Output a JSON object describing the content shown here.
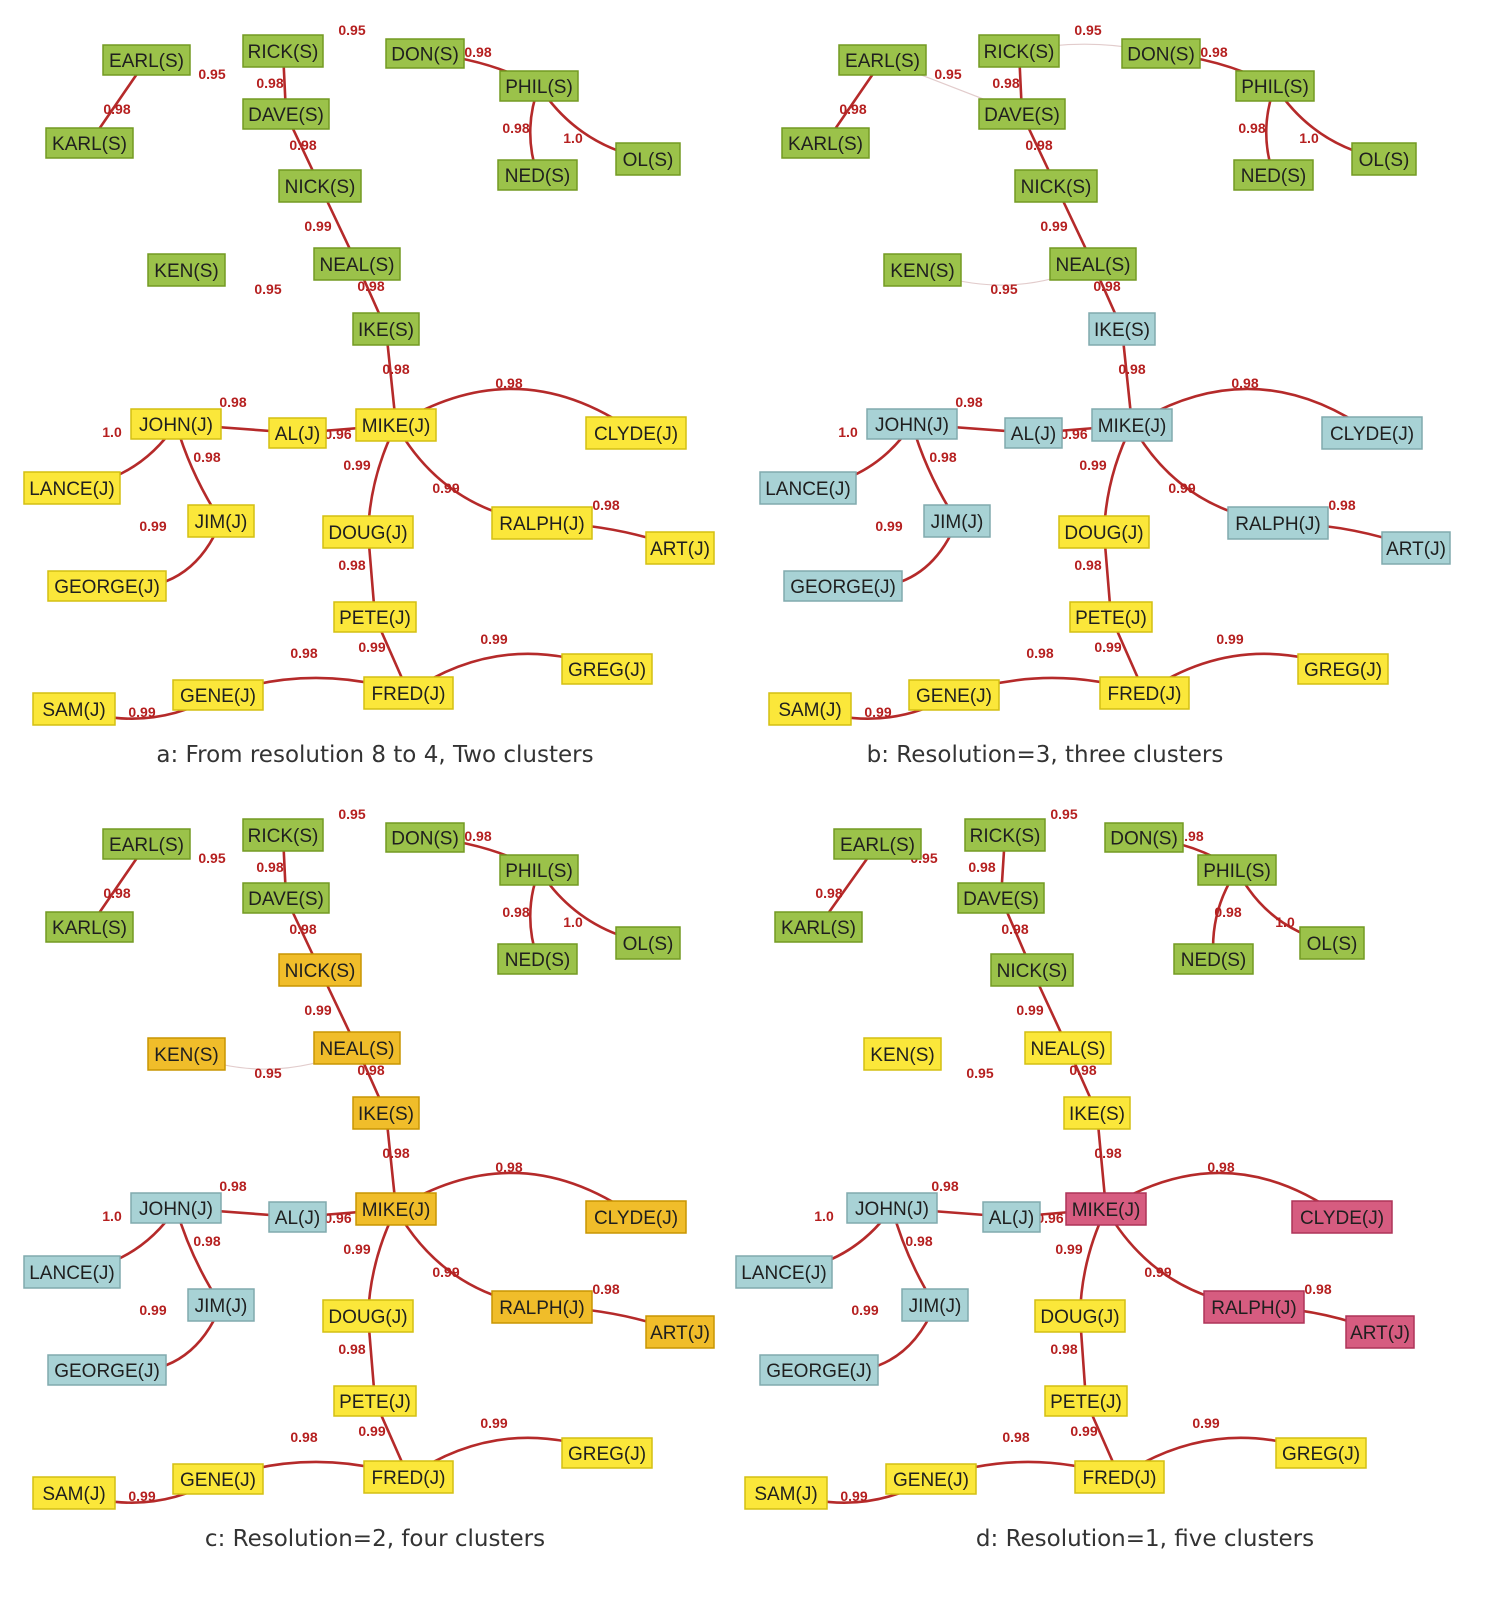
{
  "colors": {
    "green": "#9bc24a",
    "yellow": "#fbe73a",
    "blue": "#a8d2d5",
    "orange": "#f0bd2a",
    "pink": "#d65c80",
    "edge": "#b52a2a",
    "edge_label": "#b51f1f"
  },
  "nodes": [
    {
      "id": "EARL",
      "label": "EARL(S)"
    },
    {
      "id": "RICK",
      "label": "RICK(S)"
    },
    {
      "id": "DON",
      "label": "DON(S)"
    },
    {
      "id": "PHIL",
      "label": "PHIL(S)"
    },
    {
      "id": "KARL",
      "label": "KARL(S)"
    },
    {
      "id": "DAVE",
      "label": "DAVE(S)"
    },
    {
      "id": "NED",
      "label": "NED(S)"
    },
    {
      "id": "OL",
      "label": "OL(S)"
    },
    {
      "id": "NICK",
      "label": "NICK(S)"
    },
    {
      "id": "KEN",
      "label": "KEN(S)"
    },
    {
      "id": "NEAL",
      "label": "NEAL(S)"
    },
    {
      "id": "IKE",
      "label": "IKE(S)"
    },
    {
      "id": "JOHN",
      "label": "JOHN(J)"
    },
    {
      "id": "AL",
      "label": "AL(J)"
    },
    {
      "id": "MIKE",
      "label": "MIKE(J)"
    },
    {
      "id": "CLYDE",
      "label": "CLYDE(J)"
    },
    {
      "id": "LANCE",
      "label": "LANCE(J)"
    },
    {
      "id": "JIM",
      "label": "JIM(J)"
    },
    {
      "id": "DOUG",
      "label": "DOUG(J)"
    },
    {
      "id": "RALPH",
      "label": "RALPH(J)"
    },
    {
      "id": "ART",
      "label": "ART(J)"
    },
    {
      "id": "GEORGE",
      "label": "GEORGE(J)"
    },
    {
      "id": "PETE",
      "label": "PETE(J)"
    },
    {
      "id": "GREG",
      "label": "GREG(J)"
    },
    {
      "id": "SAM",
      "label": "SAM(J)"
    },
    {
      "id": "GENE",
      "label": "GENE(J)"
    },
    {
      "id": "FRED",
      "label": "FRED(J)"
    }
  ],
  "edges": [
    {
      "from": "EARL",
      "to": "KARL",
      "label": "0.98"
    },
    {
      "from": "EARL",
      "to": "DAVE",
      "label": "0.95"
    },
    {
      "from": "RICK",
      "to": "DAVE",
      "label": "0.98"
    },
    {
      "from": "RICK",
      "to": "DON",
      "label": "0.95"
    },
    {
      "from": "DON",
      "to": "PHIL",
      "label": "0.98"
    },
    {
      "from": "PHIL",
      "to": "NED",
      "label": "0.98"
    },
    {
      "from": "PHIL",
      "to": "OL",
      "label": "1.0"
    },
    {
      "from": "DAVE",
      "to": "NICK",
      "label": "0.98"
    },
    {
      "from": "NICK",
      "to": "NEAL",
      "label": "0.99"
    },
    {
      "from": "KEN",
      "to": "NEAL",
      "label": "0.95"
    },
    {
      "from": "NEAL",
      "to": "IKE",
      "label": "0.98"
    },
    {
      "from": "IKE",
      "to": "MIKE",
      "label": "0.98"
    },
    {
      "from": "MIKE",
      "to": "CLYDE",
      "label": "0.98"
    },
    {
      "from": "JOHN",
      "to": "AL",
      "label": "0.98"
    },
    {
      "from": "AL",
      "to": "MIKE",
      "label": "0.96"
    },
    {
      "from": "JOHN",
      "to": "LANCE",
      "label": "1.0"
    },
    {
      "from": "JOHN",
      "to": "JIM",
      "label": "0.98"
    },
    {
      "from": "JIM",
      "to": "GEORGE",
      "label": "0.99"
    },
    {
      "from": "MIKE",
      "to": "DOUG",
      "label": "0.99"
    },
    {
      "from": "MIKE",
      "to": "RALPH",
      "label": "0.99"
    },
    {
      "from": "RALPH",
      "to": "ART",
      "label": "0.98"
    },
    {
      "from": "DOUG",
      "to": "PETE",
      "label": "0.98"
    },
    {
      "from": "PETE",
      "to": "FRED",
      "label": "0.99"
    },
    {
      "from": "FRED",
      "to": "GREG",
      "label": "0.99"
    },
    {
      "from": "GENE",
      "to": "FRED",
      "label": "0.98"
    },
    {
      "from": "SAM",
      "to": "GENE",
      "label": "0.99"
    }
  ],
  "panels": [
    {
      "id": "a",
      "caption": "a: From resolution 8 to 4, Two clusters",
      "faint_edges": [
        "RICK-DON",
        "EARL-DAVE",
        "KEN-NEAL"
      ],
      "hidden_edges": [
        "RICK-DON",
        "EARL-DAVE",
        "KEN-NEAL"
      ],
      "clusters": {
        "EARL": "green",
        "RICK": "green",
        "DON": "green",
        "PHIL": "green",
        "KARL": "green",
        "DAVE": "green",
        "NED": "green",
        "OL": "green",
        "NICK": "green",
        "KEN": "green",
        "NEAL": "green",
        "IKE": "green",
        "JOHN": "yellow",
        "AL": "yellow",
        "MIKE": "yellow",
        "CLYDE": "yellow",
        "LANCE": "yellow",
        "JIM": "yellow",
        "DOUG": "yellow",
        "RALPH": "yellow",
        "ART": "yellow",
        "GEORGE": "yellow",
        "PETE": "yellow",
        "GREG": "yellow",
        "SAM": "yellow",
        "GENE": "yellow",
        "FRED": "yellow"
      }
    },
    {
      "id": "b",
      "caption": "b: Resolution=3, three clusters",
      "faint_edges": [
        "RICK-DON",
        "EARL-DAVE",
        "KEN-NEAL"
      ],
      "hidden_edges": [],
      "clusters": {
        "EARL": "green",
        "RICK": "green",
        "DON": "green",
        "PHIL": "green",
        "KARL": "green",
        "DAVE": "green",
        "NED": "green",
        "OL": "green",
        "NICK": "green",
        "KEN": "green",
        "NEAL": "green",
        "IKE": "blue",
        "JOHN": "blue",
        "AL": "blue",
        "MIKE": "blue",
        "CLYDE": "blue",
        "LANCE": "blue",
        "JIM": "blue",
        "DOUG": "yellow",
        "RALPH": "blue",
        "ART": "blue",
        "GEORGE": "blue",
        "PETE": "yellow",
        "GREG": "yellow",
        "SAM": "yellow",
        "GENE": "yellow",
        "FRED": "yellow"
      }
    },
    {
      "id": "c",
      "caption": "c: Resolution=2, four clusters",
      "faint_edges": [
        "RICK-DON",
        "EARL-DAVE",
        "KEN-NEAL"
      ],
      "hidden_edges": [
        "RICK-DON",
        "EARL-DAVE"
      ],
      "clusters": {
        "EARL": "green",
        "RICK": "green",
        "DON": "green",
        "PHIL": "green",
        "KARL": "green",
        "DAVE": "green",
        "NED": "green",
        "OL": "green",
        "NICK": "orange",
        "KEN": "orange",
        "NEAL": "orange",
        "IKE": "orange",
        "JOHN": "blue",
        "AL": "blue",
        "MIKE": "orange",
        "CLYDE": "orange",
        "LANCE": "blue",
        "JIM": "blue",
        "DOUG": "yellow",
        "RALPH": "orange",
        "ART": "orange",
        "GEORGE": "blue",
        "PETE": "yellow",
        "GREG": "yellow",
        "SAM": "yellow",
        "GENE": "yellow",
        "FRED": "yellow"
      }
    },
    {
      "id": "d",
      "caption": "d: Resolution=1, five clusters",
      "faint_edges": [
        "RICK-DON",
        "EARL-DAVE",
        "KEN-NEAL"
      ],
      "hidden_edges": [
        "RICK-DON",
        "EARL-DAVE",
        "KEN-NEAL"
      ],
      "clusters": {
        "EARL": "green",
        "RICK": "green",
        "DON": "green",
        "PHIL": "green",
        "KARL": "green",
        "DAVE": "green",
        "NED": "green",
        "OL": "green",
        "NICK": "green",
        "KEN": "yellow",
        "NEAL": "yellow",
        "IKE": "yellow",
        "JOHN": "blue",
        "AL": "blue",
        "MIKE": "pink",
        "CLYDE": "pink",
        "LANCE": "blue",
        "JIM": "blue",
        "DOUG": "yellow",
        "RALPH": "pink",
        "ART": "pink",
        "GEORGE": "blue",
        "PETE": "yellow",
        "GREG": "yellow",
        "SAM": "yellow",
        "GENE": "yellow",
        "FRED": "yellow"
      }
    }
  ]
}
